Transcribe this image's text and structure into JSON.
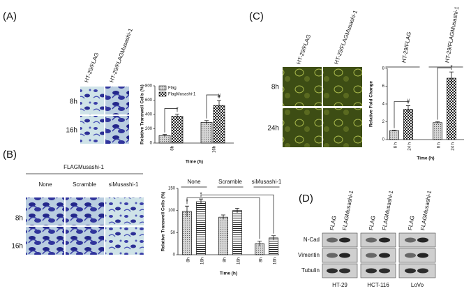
{
  "panels": {
    "A": {
      "label": "(A)",
      "columns": [
        "HT-29/FLAG",
        "HT-29/FLAGMusashi-1"
      ],
      "rows": [
        "8h",
        "16h"
      ]
    },
    "B": {
      "label": "(B)",
      "header": "FLAGMusashi-1",
      "columns": [
        "None",
        "Scramble",
        "siMusashi-1"
      ],
      "rows": [
        "8h",
        "16h"
      ]
    },
    "C": {
      "label": "(C)",
      "columns": [
        "HT-29/FLAG",
        "HT-29/FLAGMusashi-1"
      ],
      "rows": [
        "8h",
        "24h"
      ]
    },
    "D": {
      "label": "(D)",
      "lanes": [
        "FLAG",
        "FLAGMusashi-1",
        "FLAG",
        "FLAGMusashi-1",
        "FLAG",
        "FLAGMusashi-1"
      ],
      "proteins": [
        "N-Cad",
        "Vimentin",
        "Tubulin"
      ],
      "cell_lines": [
        "HT-29",
        "HCT-116",
        "LoVo"
      ]
    }
  },
  "chart_data": [
    {
      "type": "bar",
      "ylabel": "Relative Transwell Cells (%)",
      "xlabel": "Time (h)",
      "categories": [
        "8h",
        "16h"
      ],
      "series": [
        {
          "name": "Flag",
          "values": [
            105,
            290
          ],
          "errors": [
            15,
            25
          ]
        },
        {
          "name": "FlagMusashi-1",
          "values": [
            375,
            525
          ],
          "errors": [
            30,
            70
          ]
        }
      ],
      "ylim": [
        0,
        800
      ],
      "yticks": [
        0,
        200,
        400,
        600,
        800
      ],
      "annotations": [
        "*",
        "#"
      ]
    },
    {
      "type": "bar",
      "ylabel": "Relative Fold Change",
      "xlabel": "Time (h)",
      "groups": [
        "HT-29/FLAG",
        "HT-29/FLAGMusashi-1"
      ],
      "categories": [
        "8 h",
        "24 h",
        "8 h",
        "24 h"
      ],
      "values": [
        1,
        3.4,
        1.9,
        6.9
      ],
      "errors": [
        0.05,
        0.4,
        0.1,
        0.7
      ],
      "ylim": [
        0,
        8
      ],
      "yticks": [
        0,
        2,
        4,
        6,
        8
      ],
      "annotations": [
        "#",
        "*"
      ]
    },
    {
      "type": "bar",
      "ylabel": "Relative Transwell Cells (%)",
      "xlabel": "Time (h)",
      "groups": [
        "None",
        "Scramble",
        "siMusashi-1"
      ],
      "categories": [
        "8h",
        "16h",
        "8h",
        "16h",
        "8h",
        "16h"
      ],
      "values": [
        98,
        120,
        85,
        100,
        25,
        38
      ],
      "errors": [
        12,
        6,
        5,
        5,
        6,
        5
      ],
      "ylim": [
        0,
        150
      ],
      "yticks": [
        0,
        50,
        100,
        150
      ],
      "annotations": [
        "*",
        "*"
      ]
    }
  ]
}
